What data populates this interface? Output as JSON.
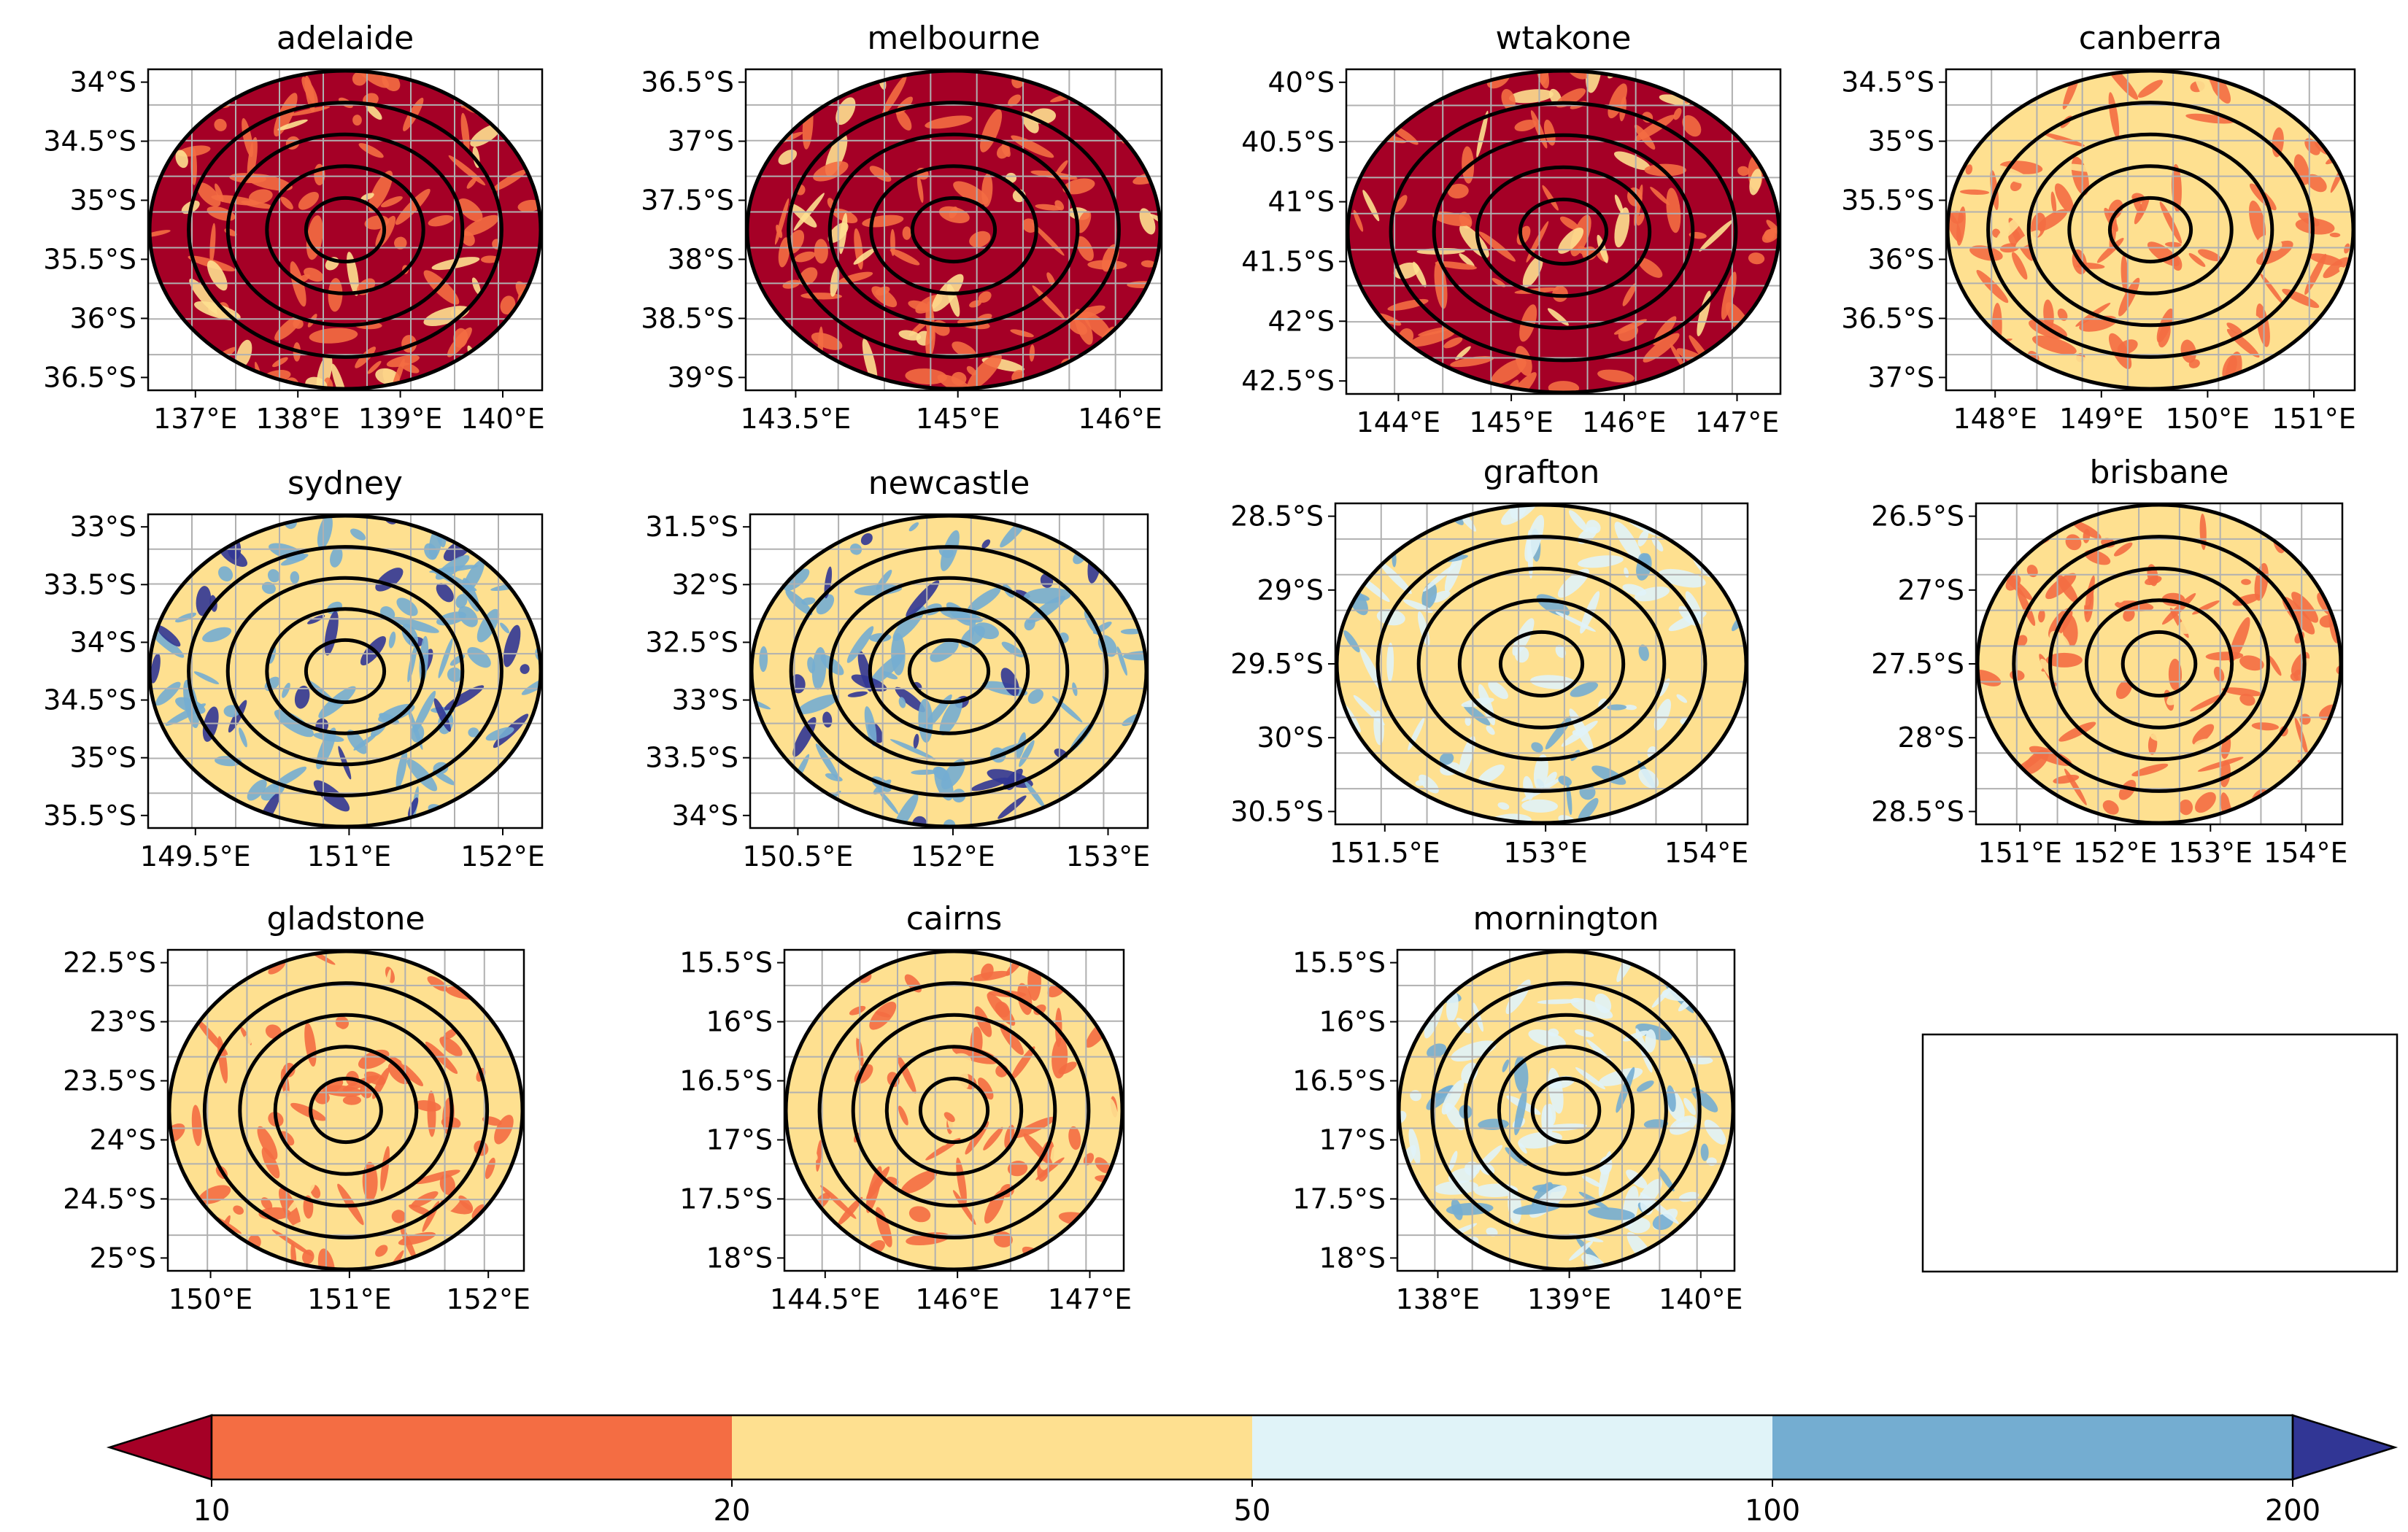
{
  "figure": {
    "panels": [
      {
        "title": "adelaide",
        "xticks": [
          "137°E",
          "138°E",
          "139°E",
          "140°E"
        ],
        "yticks": [
          "34°S",
          "34.5°S",
          "35°S",
          "35.5°S",
          "36°S",
          "36.5°S"
        ],
        "dominant_band": 0,
        "secondary_band": 1
      },
      {
        "title": "melbourne",
        "xticks": [
          "143.5°E",
          "145°E",
          "146°E"
        ],
        "yticks": [
          "36.5°S",
          "37°S",
          "37.5°S",
          "38°S",
          "38.5°S",
          "39°S"
        ],
        "dominant_band": 0,
        "secondary_band": 1
      },
      {
        "title": "wtakone",
        "xticks": [
          "144°E",
          "145°E",
          "146°E",
          "147°E"
        ],
        "yticks": [
          "40°S",
          "40.5°S",
          "41°S",
          "41.5°S",
          "42°S",
          "42.5°S"
        ],
        "dominant_band": 0,
        "secondary_band": 1
      },
      {
        "title": "canberra",
        "xticks": [
          "148°E",
          "149°E",
          "150°E",
          "151°E"
        ],
        "yticks": [
          "34.5°S",
          "35°S",
          "35.5°S",
          "36°S",
          "36.5°S",
          "37°S"
        ],
        "dominant_band": 2,
        "secondary_band": 1
      },
      {
        "title": "sydney",
        "xticks": [
          "149.5°E",
          "151°E",
          "152°E"
        ],
        "yticks": [
          "33°S",
          "33.5°S",
          "34°S",
          "34.5°S",
          "35°S",
          "35.5°S"
        ],
        "dominant_band": 2,
        "secondary_band": 4
      },
      {
        "title": "newcastle",
        "xticks": [
          "150.5°E",
          "152°E",
          "153°E"
        ],
        "yticks": [
          "31.5°S",
          "32°S",
          "32.5°S",
          "33°S",
          "33.5°S",
          "34°S"
        ],
        "dominant_band": 2,
        "secondary_band": 4
      },
      {
        "title": "grafton",
        "xticks": [
          "151.5°E",
          "153°E",
          "154°E"
        ],
        "yticks": [
          "28.5°S",
          "29°S",
          "29.5°S",
          "30°S",
          "30.5°S"
        ],
        "dominant_band": 2,
        "secondary_band": 3
      },
      {
        "title": "brisbane",
        "xticks": [
          "151°E",
          "152°E",
          "153°E",
          "154°E"
        ],
        "yticks": [
          "26.5°S",
          "27°S",
          "27.5°S",
          "28°S",
          "28.5°S"
        ],
        "dominant_band": 2,
        "secondary_band": 1
      },
      {
        "title": "gladstone",
        "xticks": [
          "150°E",
          "151°E",
          "152°E"
        ],
        "yticks": [
          "22.5°S",
          "23°S",
          "23.5°S",
          "24°S",
          "24.5°S",
          "25°S"
        ],
        "dominant_band": 2,
        "secondary_band": 1
      },
      {
        "title": "cairns",
        "xticks": [
          "144.5°E",
          "146°E",
          "147°E"
        ],
        "yticks": [
          "15.5°S",
          "16°S",
          "16.5°S",
          "17°S",
          "17.5°S",
          "18°S"
        ],
        "dominant_band": 2,
        "secondary_band": 1
      },
      {
        "title": "mornington",
        "xticks": [
          "138°E",
          "139°E",
          "140°E"
        ],
        "yticks": [
          "15.5°S",
          "16°S",
          "16.5°S",
          "17°S",
          "17.5°S",
          "18°S"
        ],
        "dominant_band": 2,
        "secondary_band": 3
      }
    ],
    "colorbar": {
      "levels": [
        "10",
        "20",
        "50",
        "100",
        "200"
      ],
      "colors": [
        "#a50026",
        "#f46d43",
        "#fee090",
        "#e0f3f8",
        "#74add1",
        "#313695"
      ],
      "extend": "both"
    }
  },
  "chart_data": {
    "type": "heatmap",
    "panel_titles": [
      "adelaide",
      "melbourne",
      "wtakone",
      "canberra",
      "sydney",
      "newcastle",
      "grafton",
      "brisbane",
      "gladstone",
      "cairns",
      "mornington"
    ],
    "colorbar_levels": [
      10,
      20,
      50,
      100,
      200
    ],
    "colorbar_extend": "both",
    "grid": true,
    "layout": "3 rows x 4 columns, last cell empty"
  }
}
